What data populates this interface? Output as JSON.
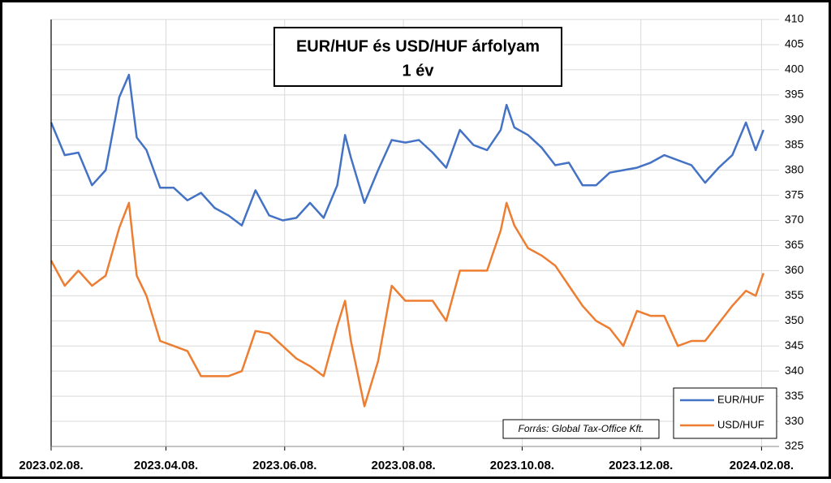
{
  "chart_data": {
    "type": "line",
    "title": "EUR/HUF és USD/HUF árfolyam",
    "subtitle": "1 év",
    "annotation": "Forrás: Global Tax-Office Kft.",
    "grid": true,
    "legend": "bottom-right",
    "x": [
      "2023-02-08",
      "2023-02-15",
      "2023-02-22",
      "2023-03-01",
      "2023-03-08",
      "2023-03-15",
      "2023-03-20",
      "2023-03-24",
      "2023-03-29",
      "2023-04-05",
      "2023-04-12",
      "2023-04-19",
      "2023-04-26",
      "2023-05-03",
      "2023-05-10",
      "2023-05-17",
      "2023-05-24",
      "2023-05-31",
      "2023-06-07",
      "2023-06-14",
      "2023-06-21",
      "2023-06-28",
      "2023-07-05",
      "2023-07-09",
      "2023-07-12",
      "2023-07-19",
      "2023-07-26",
      "2023-08-02",
      "2023-08-09",
      "2023-08-16",
      "2023-08-23",
      "2023-08-30",
      "2023-09-06",
      "2023-09-13",
      "2023-09-20",
      "2023-09-27",
      "2023-09-30",
      "2023-10-04",
      "2023-10-11",
      "2023-10-18",
      "2023-10-25",
      "2023-11-01",
      "2023-11-08",
      "2023-11-15",
      "2023-11-22",
      "2023-11-29",
      "2023-12-06",
      "2023-12-13",
      "2023-12-20",
      "2023-12-27",
      "2024-01-03",
      "2024-01-10",
      "2024-01-17",
      "2024-01-24",
      "2024-01-31",
      "2024-02-05",
      "2024-02-09"
    ],
    "series": [
      {
        "name": "EUR/HUF",
        "color": "#4472c4",
        "values": [
          389.5,
          383,
          383.5,
          377,
          380,
          394.5,
          399,
          386.5,
          384,
          376.5,
          376.5,
          374,
          375.5,
          372.5,
          371,
          369,
          376,
          371,
          370,
          370.5,
          373.5,
          370.5,
          377,
          387,
          382.5,
          373.5,
          380,
          386,
          385.5,
          386,
          383.5,
          380.5,
          388,
          385,
          384,
          388,
          393,
          388.5,
          387,
          384.5,
          381,
          381.5,
          377,
          377,
          379.5,
          380,
          380.5,
          381.5,
          383,
          382,
          381,
          377.5,
          380.5,
          383,
          389.5,
          384,
          388
        ]
      },
      {
        "name": "USD/HUF",
        "color": "#ed7d31",
        "values": [
          362,
          357,
          360,
          357,
          359,
          368.5,
          373.5,
          359,
          355,
          346,
          345,
          344,
          339,
          339,
          339,
          340,
          348,
          347.5,
          345,
          342.5,
          341,
          339,
          349,
          354,
          346,
          333,
          342,
          357,
          354,
          354,
          354,
          350,
          360,
          360,
          360,
          368,
          373.5,
          369,
          364.5,
          363,
          361,
          357,
          353,
          350,
          348.5,
          345,
          352,
          351,
          351,
          345,
          346,
          346,
          349.5,
          353,
          356,
          355,
          359.5
        ]
      }
    ],
    "xlim": [
      "2023-02-08",
      "2024-02-17"
    ],
    "xticks": [
      {
        "value": "2023-02-08",
        "label": "2023.02.08."
      },
      {
        "value": "2023-04-08",
        "label": "2023.04.08."
      },
      {
        "value": "2023-06-08",
        "label": "2023.06.08."
      },
      {
        "value": "2023-08-08",
        "label": "2023.08.08."
      },
      {
        "value": "2023-10-08",
        "label": "2023.10.08."
      },
      {
        "value": "2023-12-08",
        "label": "2023.12.08."
      },
      {
        "value": "2024-02-08",
        "label": "2024.02.08."
      }
    ],
    "ylim": [
      325,
      410
    ],
    "yticks": [
      325,
      330,
      335,
      340,
      345,
      350,
      355,
      360,
      365,
      370,
      375,
      380,
      385,
      390,
      395,
      400,
      405,
      410
    ]
  }
}
